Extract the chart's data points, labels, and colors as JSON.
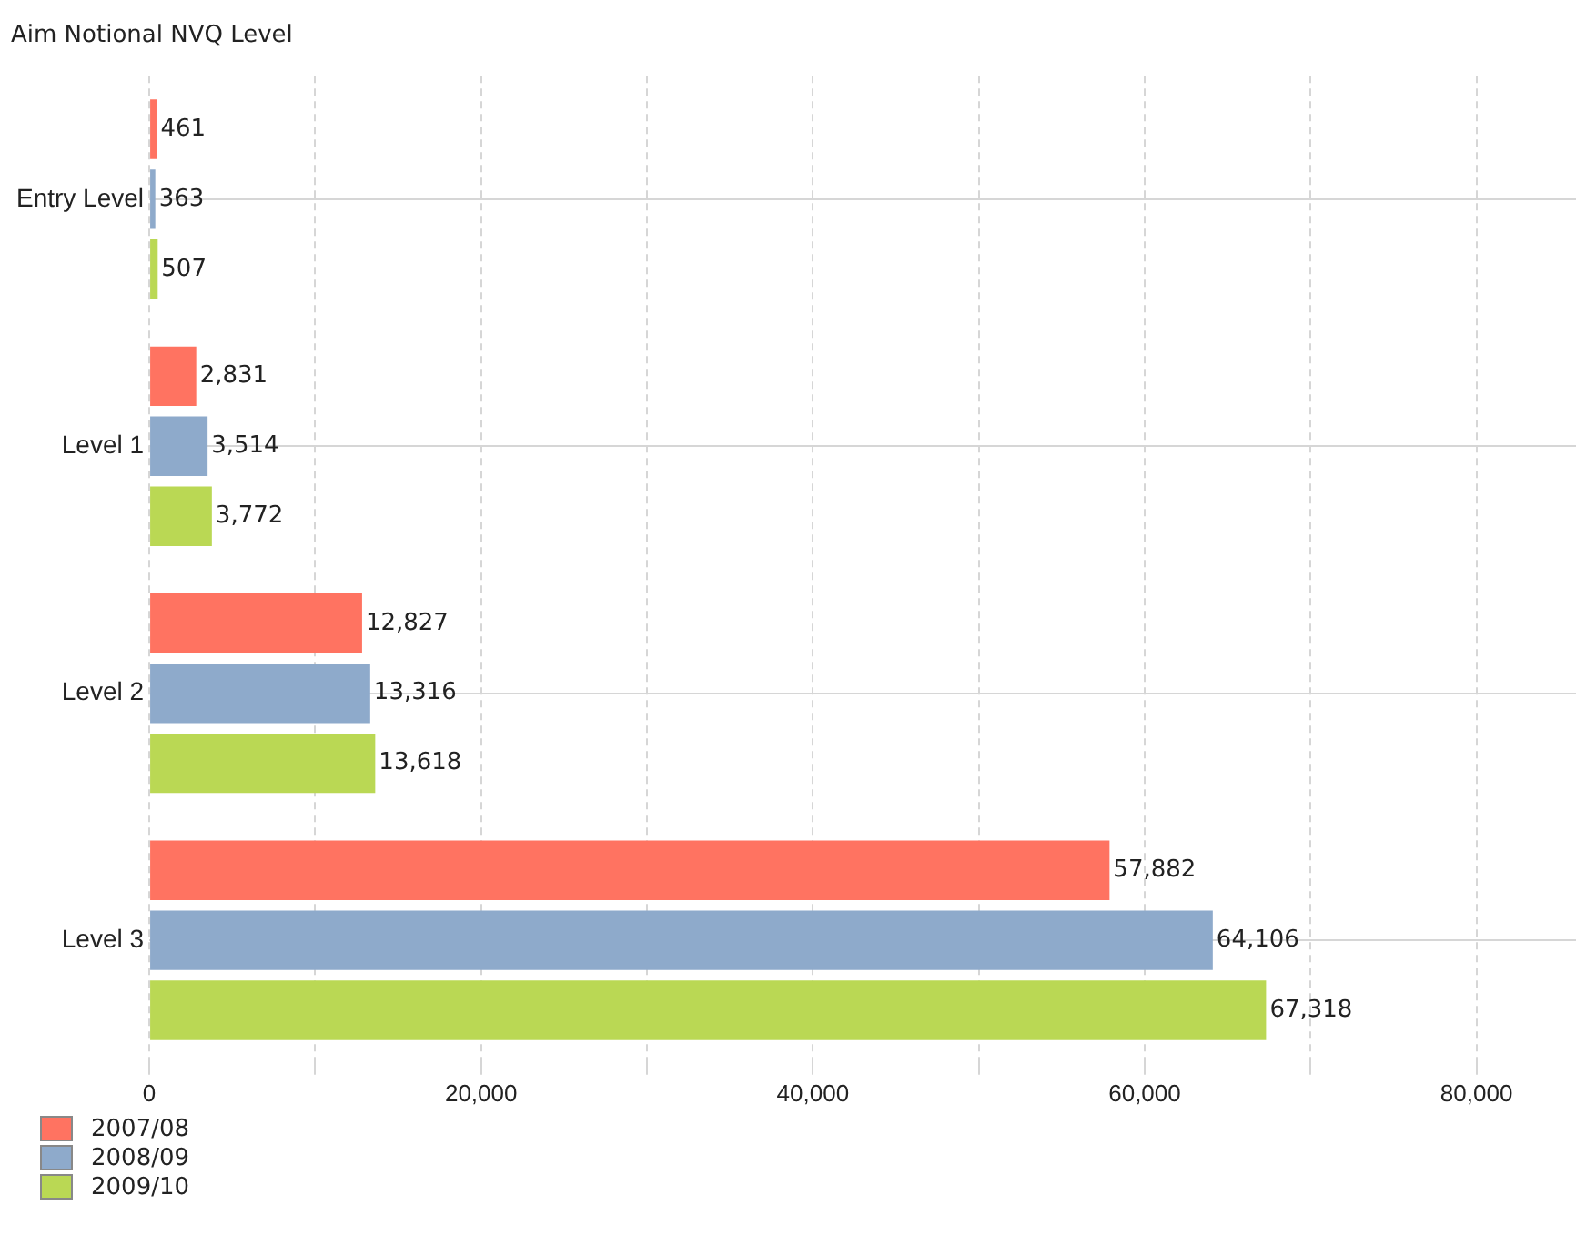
{
  "chart_data": {
    "type": "bar",
    "orientation": "horizontal",
    "ylabel": "Aim Notional NVQ Level",
    "categories": [
      "Entry Level",
      "Level 1",
      "Level 2",
      "Level 3"
    ],
    "series": [
      {
        "name": "2007/08",
        "color": "#ff7361",
        "values": [
          461,
          2831,
          12827,
          57882
        ],
        "value_labels": [
          "461",
          "2,831",
          "12,827",
          "57,882"
        ]
      },
      {
        "name": "2008/09",
        "color": "#8eaacb",
        "values": [
          363,
          3514,
          13316,
          64106
        ],
        "value_labels": [
          "363",
          "3,514",
          "13,316",
          "64,106"
        ]
      },
      {
        "name": "2009/10",
        "color": "#bad854",
        "values": [
          507,
          3772,
          13618,
          67318
        ],
        "value_labels": [
          "507",
          "3,772",
          "13,618",
          "67,318"
        ]
      }
    ],
    "xlim": [
      0,
      86000
    ],
    "xticks": [
      0,
      {
        "value": 10000,
        "label": null
      },
      {
        "value": 20000,
        "label": "20,000"
      },
      {
        "value": 30000,
        "label": null
      },
      {
        "value": 40000,
        "label": "40,000"
      },
      {
        "value": 50000,
        "label": null
      },
      {
        "value": 60000,
        "label": "60,000"
      },
      {
        "value": 70000,
        "label": null
      },
      {
        "value": 80000,
        "label": "80,000"
      }
    ],
    "grid": true,
    "legend": "bottom left"
  }
}
